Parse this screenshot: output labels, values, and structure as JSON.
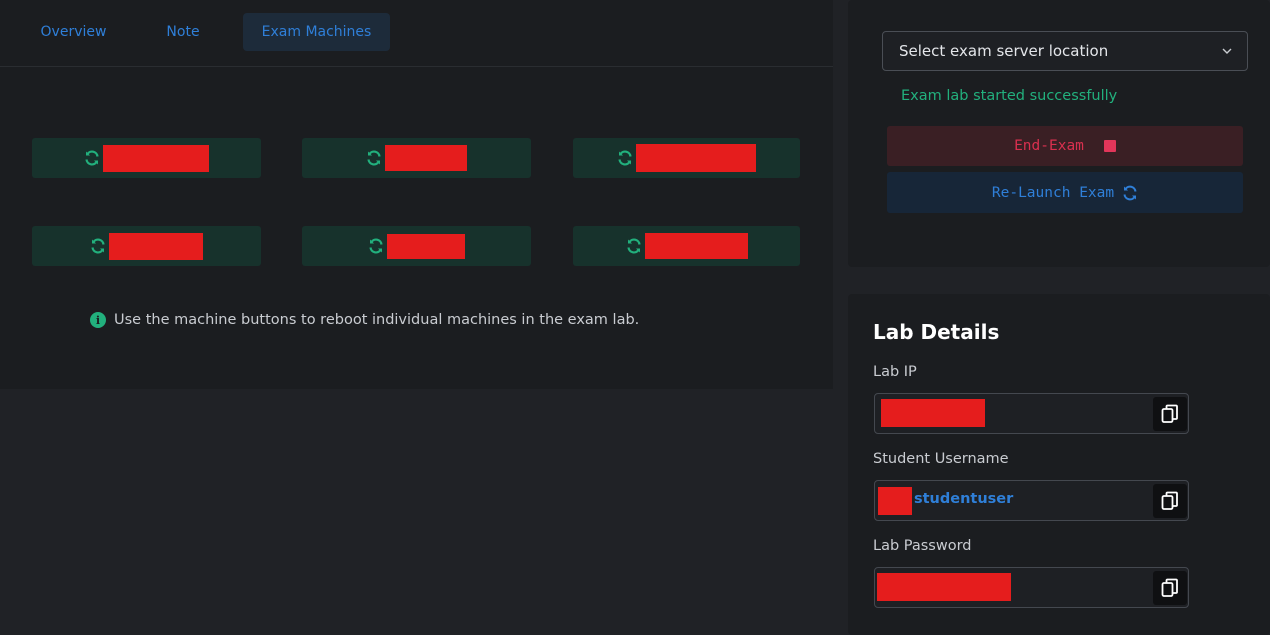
{
  "tabs": {
    "overview": "Overview",
    "note": "Note",
    "exam_machines": "Exam Machines",
    "active": "Exam Machines"
  },
  "machines": {
    "count": 6,
    "icon": "refresh-icon",
    "note": "names redacted"
  },
  "info": {
    "icon": "info-icon",
    "text": "Use the machine buttons to reboot individual machines in the exam lab."
  },
  "server_select": {
    "placeholder": "Select exam server location",
    "icon": "chevron-down-icon"
  },
  "status": {
    "text": "Exam lab started successfully",
    "color": "#22b07d"
  },
  "actions": {
    "end_exam": "End-Exam",
    "relaunch": "Re-Launch Exam"
  },
  "lab_details": {
    "title": "Lab Details",
    "lab_ip_label": "Lab IP",
    "username_label": "Student Username",
    "username_value": "studentuser",
    "password_label": "Lab Password",
    "copy_icon": "copy-icon"
  },
  "colors": {
    "accent_blue": "#2f7fd8",
    "success_green": "#22b07d",
    "danger_red": "#d9304f",
    "redaction": "#e51d1d"
  }
}
